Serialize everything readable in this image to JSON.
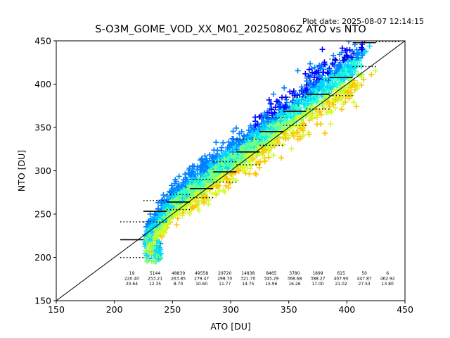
{
  "plot_date": "Plot date: 2025-08-07 12:14:15",
  "chart_data": {
    "type": "scatter",
    "title": "S-O3M_GOME_VOD_XX_M01_20250806Z ATO vs NTO",
    "xlabel": "ATO [DU]",
    "ylabel": "NTO [DU]",
    "xlim": [
      150,
      450
    ],
    "ylim": [
      150,
      450
    ],
    "x_ticks": [
      "150",
      "200",
      "250",
      "300",
      "350",
      "400",
      "450"
    ],
    "y_ticks": [
      "150",
      "200",
      "250",
      "300",
      "350",
      "400",
      "450"
    ],
    "grid": false,
    "legend": "none",
    "marker": "plus",
    "reference_line": {
      "from": [
        150,
        150
      ],
      "to": [
        450,
        450
      ]
    },
    "density_colors": [
      "#0000ff",
      "#0080ff",
      "#00d8ff",
      "#29ffce",
      "#7dff7a",
      "#ceff29",
      "#ffc400",
      "#ff6800"
    ],
    "bins": [
      {
        "x_center": 215,
        "count": "19",
        "mean": "220.40",
        "std": "20.64"
      },
      {
        "x_center": 235,
        "count": "5144",
        "mean": "253.21",
        "std": "12.35"
      },
      {
        "x_center": 255,
        "count": "48839",
        "mean": "263.85",
        "std": "8.70"
      },
      {
        "x_center": 275,
        "count": "49558",
        "mean": "279.47",
        "std": "10.60"
      },
      {
        "x_center": 295,
        "count": "29720",
        "mean": "298.70",
        "std": "11.77"
      },
      {
        "x_center": 315,
        "count": "14838",
        "mean": "321.70",
        "std": "14.75"
      },
      {
        "x_center": 335,
        "count": "8465",
        "mean": "345.29",
        "std": "15.96"
      },
      {
        "x_center": 355,
        "count": "3780",
        "mean": "368.68",
        "std": "16.26"
      },
      {
        "x_center": 375,
        "count": "1899",
        "mean": "388.27",
        "std": "17.00"
      },
      {
        "x_center": 395,
        "count": "615",
        "mean": "407.90",
        "std": "21.02"
      },
      {
        "x_center": 415,
        "count": "50",
        "mean": "447.87",
        "std": "27.53"
      },
      {
        "x_center": 435,
        "count": "6",
        "mean": "462.92",
        "std": "13.80"
      }
    ],
    "bin_width": 20,
    "stats_label_y": [
      180,
      174,
      168
    ]
  }
}
